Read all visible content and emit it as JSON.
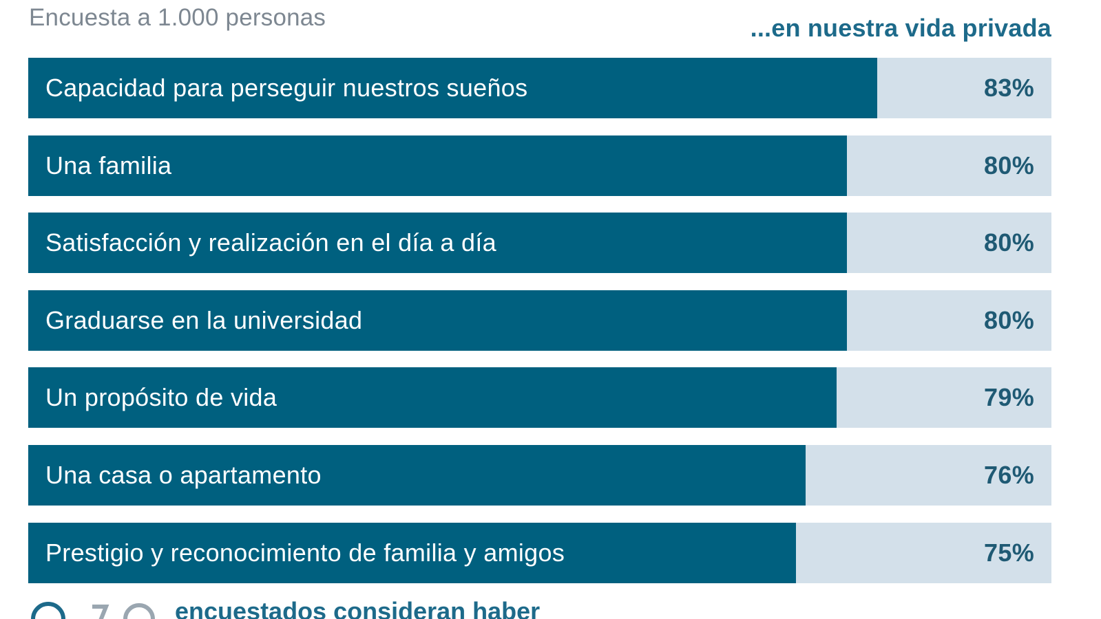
{
  "header": {
    "subtitle": "Encuesta a 1.000 personas",
    "section_label": "...en nuestra vida privada"
  },
  "footer": {
    "text": "encuestados consideran haber"
  },
  "colors": {
    "bar": "#00607f",
    "track": "#d3e0ea",
    "value_text": "#1f5a74",
    "accent": "#1d6a8a"
  },
  "chart_data": {
    "type": "bar",
    "orientation": "horizontal",
    "categories": [
      "Capacidad para perseguir nuestros sueños",
      "Una familia",
      "Satisfacción y realización en el día a día",
      "Graduarse en la universidad",
      "Un propósito de vida",
      "Una casa o apartamento",
      "Prestigio y reconocimiento de familia y amigos"
    ],
    "values": [
      83,
      80,
      80,
      80,
      79,
      76,
      75
    ],
    "value_labels": [
      "83%",
      "80%",
      "80%",
      "80%",
      "79%",
      "76%",
      "75%"
    ],
    "xlim": [
      0,
      100
    ],
    "grid": false
  }
}
